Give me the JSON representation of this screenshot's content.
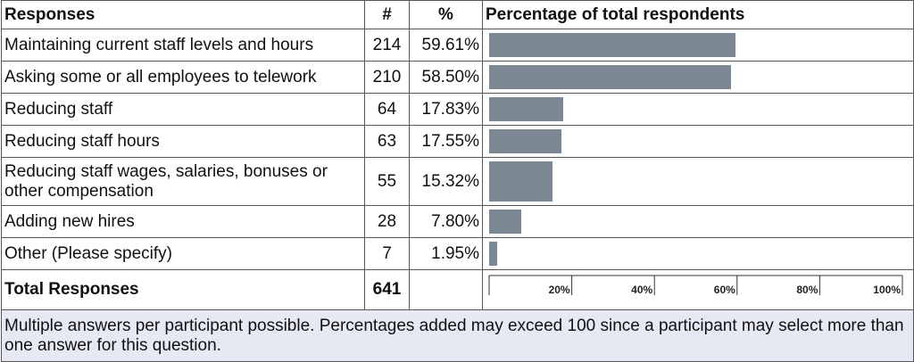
{
  "table": {
    "headers": [
      "Responses",
      "#",
      "%",
      "Percentage of total respondents"
    ],
    "rows": [
      {
        "response": "Maintaining current staff levels and hours",
        "count": 214,
        "percent": 59.61,
        "percent_label": "59.61%"
      },
      {
        "response": "Asking some or all employees to telework",
        "count": 210,
        "percent": 58.5,
        "percent_label": "58.50%"
      },
      {
        "response": "Reducing staff",
        "count": 64,
        "percent": 17.83,
        "percent_label": "17.83%"
      },
      {
        "response": "Reducing staff hours",
        "count": 63,
        "percent": 17.55,
        "percent_label": "17.55%"
      },
      {
        "response": "Reducing staff wages, salaries, bonuses or other compensation",
        "count": 55,
        "percent": 15.32,
        "percent_label": "15.32%"
      },
      {
        "response": "Adding new hires",
        "count": 28,
        "percent": 7.8,
        "percent_label": "7.80%"
      },
      {
        "response": "Other (Please specify)",
        "count": 7,
        "percent": 1.95,
        "percent_label": "1.95%"
      }
    ],
    "total": {
      "label": "Total Responses",
      "count": 641
    },
    "bar_color": "#7b8894",
    "xlim": [
      0,
      100
    ],
    "xticks": [
      {
        "value": 20,
        "label": "20%"
      },
      {
        "value": 40,
        "label": "40%"
      },
      {
        "value": 60,
        "label": "60%"
      },
      {
        "value": 80,
        "label": "80%"
      },
      {
        "value": 100,
        "label": "100%"
      }
    ]
  },
  "footnote": "Multiple answers per participant possible. Percentages added may exceed 100 since a participant may select more than one answer for this question."
}
